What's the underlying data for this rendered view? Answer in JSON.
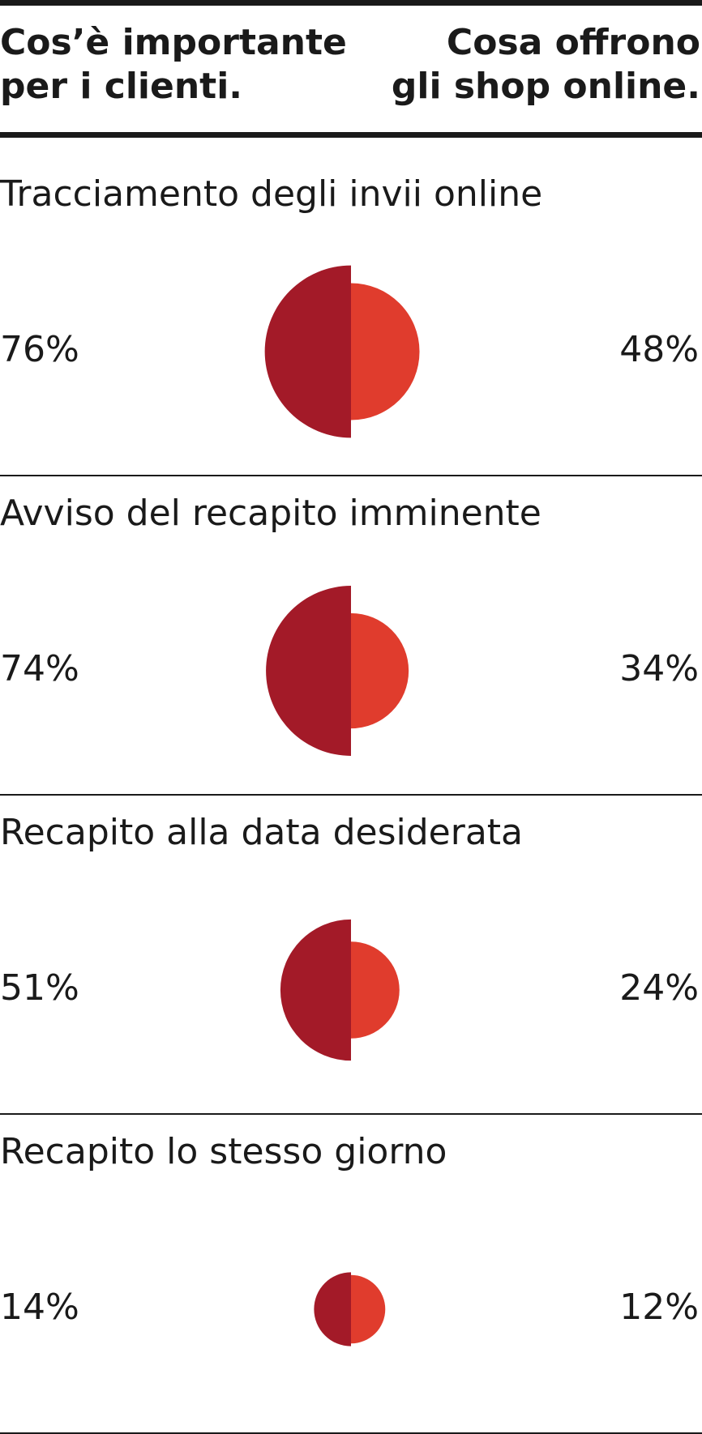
{
  "colors": {
    "customers": "#A31A28",
    "shops": "#E03C2D",
    "text": "#1a1a1a"
  },
  "header": {
    "left": "Cos’è importante\nper i clienti.",
    "right": "Cosa offrono\ngli shop online."
  },
  "chart_data": {
    "type": "paired-half-circles",
    "categories": [
      "Tracciamento degli invii online",
      "Avviso del recapito imminente",
      "Recapito alla data desiderata",
      "Recapito lo stesso giorno"
    ],
    "series": [
      {
        "values": [
          76,
          74,
          51,
          14
        ],
        "labels": [
          "76%",
          "74%",
          "51%",
          "14%"
        ]
      },
      {
        "values": [
          48,
          34,
          24,
          12
        ],
        "labels": [
          "48%",
          "34%",
          "24%",
          "12%"
        ]
      }
    ]
  }
}
